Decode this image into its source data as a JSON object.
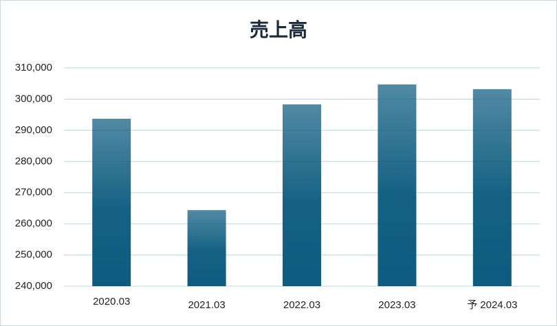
{
  "chart_data": {
    "type": "bar",
    "title": "売上高",
    "categories": [
      "2020.03",
      "2021.03",
      "2022.03",
      "2023.03",
      "予 2024.03"
    ],
    "values": [
      293700,
      264400,
      298300,
      304700,
      303200
    ],
    "color": "#0d5c7f",
    "ylim": [
      240000,
      310000
    ],
    "yticks": [
      {
        "value": 240000,
        "label": "240,000"
      },
      {
        "value": 250000,
        "label": "250,000"
      },
      {
        "value": 260000,
        "label": "260,000"
      },
      {
        "value": 270000,
        "label": "270,000"
      },
      {
        "value": 280000,
        "label": "280,000"
      },
      {
        "value": 290000,
        "label": "290,000"
      },
      {
        "value": 300000,
        "label": "300,000"
      },
      {
        "value": 310000,
        "label": "310,000"
      }
    ],
    "grid": true
  }
}
